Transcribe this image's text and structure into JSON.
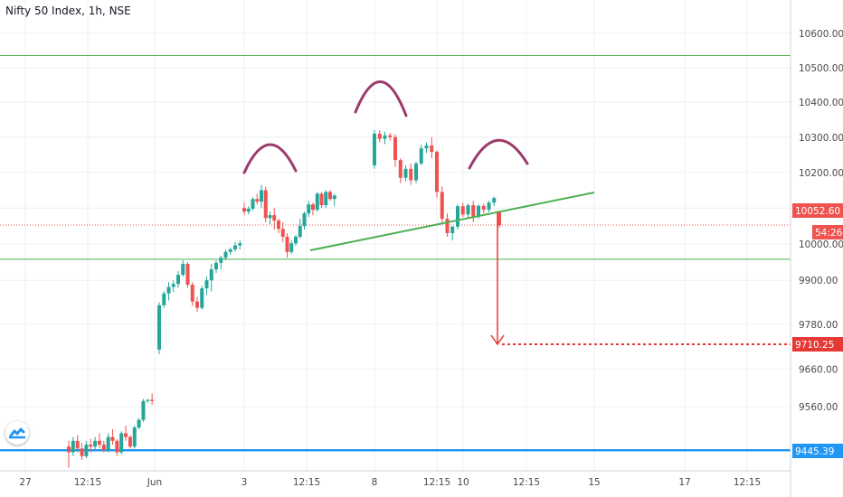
{
  "title": "Nifty 50 Index, 1h, NSE",
  "colors": {
    "up": "#26a69a",
    "down": "#ef5350",
    "neckline": "#4caf50",
    "hline": "#4caf50",
    "blue": "#2196f3",
    "arc": "#9c3a6a",
    "target": "#e53935",
    "grid": "#eceff5"
  },
  "chart_data": {
    "type": "candlestick",
    "y_axis": {
      "ticks": [
        "10600.00",
        "10500.00",
        "10400.00",
        "10300.00",
        "10200.00",
        "10100.00",
        "10000.00",
        "9900.00",
        "9780.00",
        "9660.00",
        "9560.00"
      ],
      "scale": "log"
    },
    "x_axis": {
      "ticks": [
        "27",
        "12:15",
        "Jun",
        "3",
        "12:15",
        "8",
        "12:15",
        "10",
        "12:15",
        "15",
        "17",
        "12:15"
      ]
    },
    "price_labels": {
      "current": "10052.60",
      "countdown": "54:26",
      "target": "9710.25",
      "support": "9445.39"
    },
    "levels": {
      "resistance": 10535,
      "current": 10052.6,
      "support_green": 9958,
      "target": 9710.25,
      "blue": 9445.39
    },
    "pattern": "head-and-shoulders",
    "candles": [
      [
        9455,
        9470,
        9400,
        9440
      ],
      [
        9440,
        9480,
        9430,
        9470
      ],
      [
        9470,
        9485,
        9440,
        9450
      ],
      [
        9450,
        9465,
        9420,
        9430
      ],
      [
        9430,
        9470,
        9425,
        9460
      ],
      [
        9460,
        9475,
        9440,
        9455
      ],
      [
        9455,
        9480,
        9445,
        9470
      ],
      [
        9470,
        9490,
        9450,
        9460
      ],
      [
        9460,
        9470,
        9440,
        9445
      ],
      [
        9445,
        9490,
        9440,
        9480
      ],
      [
        9480,
        9500,
        9460,
        9470
      ],
      [
        9470,
        9475,
        9430,
        9440
      ],
      [
        9440,
        9495,
        9435,
        9490
      ],
      [
        9490,
        9510,
        9470,
        9480
      ],
      [
        9480,
        9485,
        9450,
        9455
      ],
      [
        9455,
        9510,
        9450,
        9505
      ],
      [
        9505,
        9530,
        9500,
        9525
      ],
      [
        9525,
        9580,
        9520,
        9575
      ],
      [
        9575,
        9580,
        9570,
        9578
      ],
      [
        9578,
        9595,
        9565,
        9575
      ],
      [
        9712,
        9840,
        9700,
        9832
      ],
      [
        9832,
        9870,
        9825,
        9864
      ],
      [
        9864,
        9895,
        9845,
        9882
      ],
      [
        9882,
        9900,
        9868,
        9890
      ],
      [
        9890,
        9925,
        9880,
        9915
      ],
      [
        9915,
        9955,
        9910,
        9945
      ],
      [
        9945,
        9950,
        9880,
        9888
      ],
      [
        9888,
        9895,
        9830,
        9842
      ],
      [
        9842,
        9855,
        9815,
        9825
      ],
      [
        9825,
        9885,
        9820,
        9878
      ],
      [
        9878,
        9910,
        9860,
        9900
      ],
      [
        9900,
        9945,
        9870,
        9930
      ],
      [
        9930,
        9955,
        9920,
        9948
      ],
      [
        9948,
        9968,
        9930,
        9962
      ],
      [
        9962,
        9985,
        9955,
        9978
      ],
      [
        9978,
        9990,
        9970,
        9985
      ],
      [
        9985,
        10005,
        9978,
        9996
      ],
      [
        9996,
        10010,
        9985,
        10002
      ],
      [
        10100,
        10115,
        10080,
        10090
      ],
      [
        10090,
        10105,
        10082,
        10098
      ],
      [
        10098,
        10130,
        10092,
        10125
      ],
      [
        10125,
        10140,
        10110,
        10118
      ],
      [
        10118,
        10165,
        10100,
        10150
      ],
      [
        10150,
        10160,
        10060,
        10072
      ],
      [
        10072,
        10090,
        10055,
        10080
      ],
      [
        10080,
        10100,
        10040,
        10065
      ],
      [
        10065,
        10070,
        10030,
        10042
      ],
      [
        10042,
        10060,
        10005,
        10020
      ],
      [
        10020,
        10030,
        9962,
        9978
      ],
      [
        9978,
        10010,
        9972,
        10002
      ],
      [
        10002,
        10025,
        9995,
        10020
      ],
      [
        10020,
        10070,
        10015,
        10050
      ],
      [
        10050,
        10090,
        10040,
        10085
      ],
      [
        10085,
        10120,
        10075,
        10110
      ],
      [
        10110,
        10115,
        10080,
        10095
      ],
      [
        10095,
        10145,
        10090,
        10140
      ],
      [
        10140,
        10145,
        10100,
        10108
      ],
      [
        10108,
        10150,
        10100,
        10145
      ],
      [
        10145,
        10150,
        10120,
        10125
      ],
      [
        10125,
        10140,
        10105,
        10135
      ],
      [
        10220,
        10320,
        10210,
        10310
      ],
      [
        10310,
        10320,
        10285,
        10295
      ],
      [
        10295,
        10315,
        10280,
        10305
      ],
      [
        10305,
        10312,
        10290,
        10300
      ],
      [
        10300,
        10308,
        10215,
        10235
      ],
      [
        10235,
        10240,
        10170,
        10185
      ],
      [
        10185,
        10220,
        10175,
        10210
      ],
      [
        10210,
        10225,
        10165,
        10178
      ],
      [
        10178,
        10230,
        10170,
        10225
      ],
      [
        10225,
        10278,
        10220,
        10268
      ],
      [
        10268,
        10285,
        10255,
        10276
      ],
      [
        10276,
        10300,
        10240,
        10258
      ],
      [
        10258,
        10262,
        10130,
        10145
      ],
      [
        10145,
        10160,
        10060,
        10070
      ],
      [
        10070,
        10085,
        10020,
        10030
      ],
      [
        10030,
        10050,
        10010,
        10048
      ],
      [
        10048,
        10110,
        10040,
        10105
      ],
      [
        10105,
        10115,
        10075,
        10082
      ],
      [
        10082,
        10112,
        10070,
        10108
      ],
      [
        10108,
        10120,
        10060,
        10075
      ],
      [
        10075,
        10110,
        10070,
        10106
      ],
      [
        10106,
        10112,
        10085,
        10095
      ],
      [
        10095,
        10120,
        10088,
        10115
      ],
      [
        10115,
        10132,
        10105,
        10128
      ],
      [
        10090,
        10092,
        10045,
        10052
      ]
    ]
  }
}
